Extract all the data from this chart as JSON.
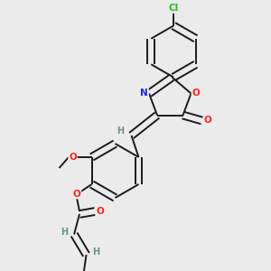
{
  "background_color": "#ebebeb",
  "bond_color": "#1a1a1a",
  "atom_colors": {
    "N": "#2020ff",
    "O": "#ff2020",
    "Cl": "#22bb22",
    "H": "#6a9090",
    "C": "#1a1a1a"
  },
  "figsize": [
    3.0,
    3.0
  ],
  "dpi": 100
}
